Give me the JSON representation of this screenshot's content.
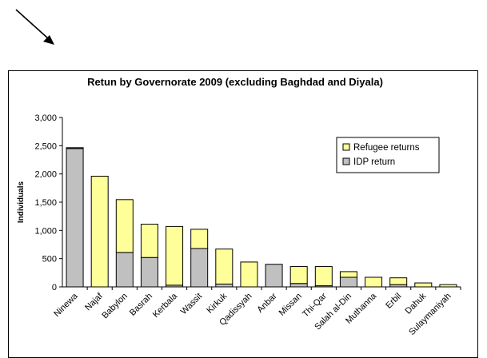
{
  "chart_data": {
    "type": "bar",
    "stacked": true,
    "title": "Retun by Governorate 2009 (excluding Baghdad and Diyala)",
    "xlabel": "",
    "ylabel": "Individuals",
    "ylim": [
      0,
      3000
    ],
    "yticks": [
      "0",
      "500",
      "1,000",
      "1,500",
      "2,000",
      "2,500",
      "3,000"
    ],
    "ytick_values": [
      0,
      500,
      1000,
      1500,
      2000,
      2500,
      3000
    ],
    "categories": [
      "Ninewa",
      "Najaf",
      "Babylon",
      "Basrah",
      "Kerbala",
      "Wassit",
      "Kirkuk",
      "Qadissyah",
      "Anbar",
      "Missan",
      "Thi-Qar",
      "Salah al-Din",
      "Muthanna",
      "Erbil",
      "Dahuk",
      "Sulaymaniyah"
    ],
    "series": [
      {
        "name": "IDP return",
        "color": "#c0c0c0",
        "values": [
          2450,
          0,
          610,
          520,
          30,
          680,
          50,
          0,
          400,
          60,
          20,
          170,
          0,
          40,
          0,
          0
        ]
      },
      {
        "name": "Refugee returns",
        "color": "#ffff99",
        "values": [
          15,
          1960,
          935,
          590,
          1040,
          340,
          620,
          440,
          0,
          300,
          340,
          100,
          170,
          120,
          70,
          40
        ]
      }
    ],
    "legend": {
      "position": "top-right",
      "entries": [
        "Refugee returns",
        "IDP return"
      ]
    },
    "grid": false
  },
  "decoration": {
    "arrow_icon": "arrow-down-right-icon"
  }
}
